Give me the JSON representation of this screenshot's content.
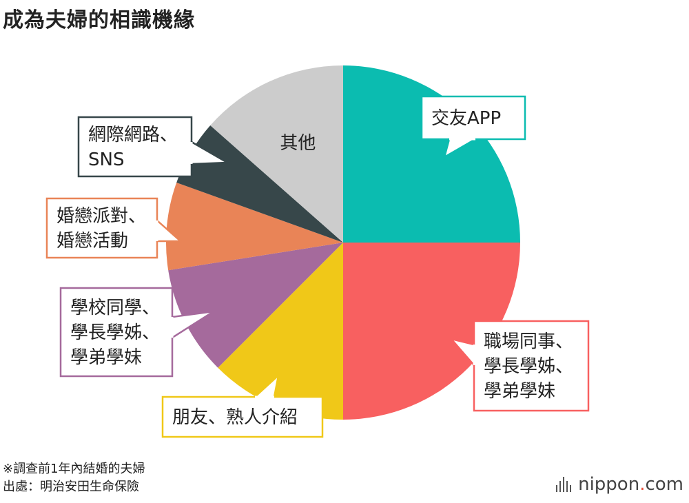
{
  "title": "成為夫婦的相識機緣",
  "chart_data": {
    "type": "pie",
    "title": "成為夫婦的相識機緣",
    "start_angle": "12 o'clock",
    "direction": "clockwise",
    "slices": [
      {
        "label_lines": [
          "交友APP"
        ],
        "value": 25,
        "color": "#0bbcb0",
        "border": "#0bbcb0",
        "callout_position": "top-right"
      },
      {
        "label_lines": [
          "職場同事、",
          "學長學姊、",
          "學弟學妹"
        ],
        "value": 25,
        "color": "#f86060",
        "border": "#f86060",
        "callout_position": "right"
      },
      {
        "label_lines": [
          "朋友、熟人介紹"
        ],
        "value": 12.5,
        "color": "#f0c818",
        "border": "#f0c818",
        "callout_position": "bottom"
      },
      {
        "label_lines": [
          "學校同學、",
          "學長學姊、",
          "學弟學妹"
        ],
        "value": 10,
        "color": "#a56a9c",
        "border": "#a56a9c",
        "callout_position": "left"
      },
      {
        "label_lines": [
          "婚戀派對、",
          "婚戀活動"
        ],
        "value": 8,
        "color": "#e98457",
        "border": "#e98457",
        "callout_position": "left"
      },
      {
        "label_lines": [
          "網際網路、",
          "SNS"
        ],
        "value": 6,
        "color": "#37474a",
        "border": "#37474a",
        "callout_position": "top-left"
      },
      {
        "label_lines": [
          "其他"
        ],
        "value": 13.5,
        "color": "#cccccc",
        "border": "#cccccc",
        "callout_position": "inside"
      }
    ]
  },
  "footnote": {
    "line1": "※調查前1年內結婚的夫婦",
    "line2": "出處：明治安田生命保險"
  },
  "brand": {
    "name": "nippon",
    "dot": ".",
    "suffix": "com"
  }
}
